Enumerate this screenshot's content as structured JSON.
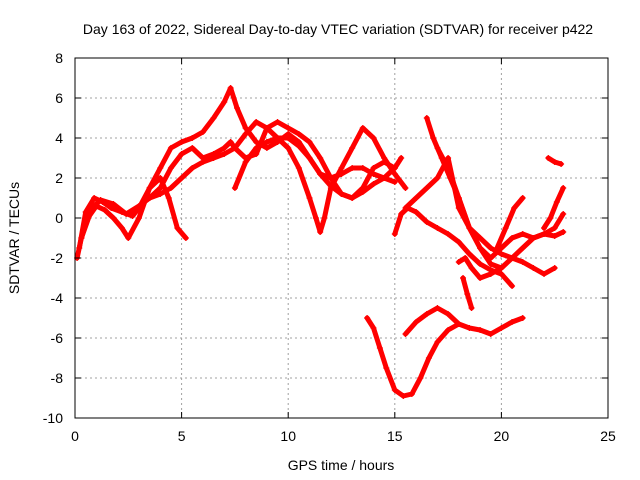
{
  "chart_data": {
    "type": "scatter",
    "title": "Day 163 of 2022, Sidereal Day-to-day VTEC variation (SDTVAR) for receiver p422",
    "xlabel": "GPS time / hours",
    "ylabel": "SDTVAR / TECUs",
    "xlim": [
      0,
      25
    ],
    "ylim": [
      -10,
      8
    ],
    "xticks": [
      0,
      5,
      10,
      15,
      20,
      25
    ],
    "yticks": [
      -10,
      -8,
      -6,
      -4,
      -2,
      0,
      2,
      4,
      6,
      8
    ],
    "grid": true,
    "marker": "+",
    "color": "#ff0000",
    "series": [
      {
        "x": [
          0.1,
          0.3,
          0.6,
          1.0,
          1.4,
          1.8,
          2.2,
          2.5,
          3.0,
          3.5,
          4.0,
          4.5,
          5.0,
          5.5,
          6.0,
          6.5,
          7.0,
          7.3,
          7.6,
          8.0,
          8.5,
          9.0,
          9.5,
          10.0,
          10.5,
          11.0,
          11.5,
          12.0,
          12.5,
          13.0,
          13.5,
          14.0,
          14.5,
          15.0
        ],
        "y": [
          -2.0,
          -1.0,
          0.0,
          0.6,
          0.4,
          0.0,
          -0.5,
          -1.0,
          0.0,
          1.5,
          2.5,
          3.5,
          3.8,
          4.0,
          4.3,
          5.0,
          5.8,
          6.5,
          5.5,
          4.5,
          3.8,
          3.5,
          3.8,
          4.2,
          3.8,
          3.0,
          2.2,
          2.0,
          2.2,
          2.5,
          2.5,
          2.2,
          2.0,
          1.8
        ]
      },
      {
        "x": [
          0.2,
          0.5,
          0.9,
          1.3,
          1.7,
          2.2,
          2.7,
          3.0,
          3.5,
          4.0,
          4.4,
          4.8,
          5.2
        ],
        "y": [
          -1.5,
          0.3,
          1.0,
          0.8,
          0.5,
          0.3,
          0.1,
          0.5,
          1.5,
          2.0,
          1.0,
          -0.5,
          -1.0
        ]
      },
      {
        "x": [
          0.3,
          0.8,
          1.2,
          1.8,
          2.4,
          3.0,
          3.5,
          4.0,
          4.5,
          5.0,
          5.5,
          6.0,
          6.5,
          7.0,
          7.5,
          8.0,
          8.5,
          9.0,
          9.5,
          10.0,
          10.5,
          11.0,
          11.3,
          11.5,
          11.7,
          12.0,
          12.5,
          13.0,
          13.5,
          14.0,
          14.5,
          15.0,
          15.5
        ],
        "y": [
          -1.0,
          0.5,
          0.9,
          0.7,
          0.2,
          0.6,
          1.0,
          1.2,
          1.5,
          2.0,
          2.5,
          2.8,
          3.0,
          3.2,
          3.5,
          4.2,
          4.8,
          4.5,
          4.0,
          3.5,
          2.5,
          1.0,
          0.0,
          -0.7,
          0.0,
          1.5,
          2.5,
          3.5,
          4.5,
          4.0,
          3.0,
          2.2,
          1.5
        ]
      },
      {
        "x": [
          3.5,
          4.0,
          4.5,
          5.0,
          5.5,
          6.0,
          6.5,
          7.0,
          7.3,
          7.5,
          8.0,
          8.5,
          9.0,
          9.5,
          10.0,
          10.5,
          11.0,
          11.5,
          12.0,
          12.5,
          13.0,
          13.5,
          14.0,
          14.5,
          15.0,
          15.3
        ],
        "y": [
          1.0,
          1.5,
          2.5,
          3.2,
          3.5,
          3.0,
          3.2,
          3.5,
          3.8,
          3.5,
          3.0,
          3.2,
          4.5,
          4.8,
          4.5,
          4.2,
          3.8,
          3.0,
          2.0,
          1.2,
          1.0,
          1.3,
          1.7,
          2.0,
          2.5,
          3.0
        ]
      },
      {
        "x": [
          7.5,
          8.0,
          8.5,
          9.0,
          9.5,
          10.0,
          10.5,
          11.0,
          11.5,
          12.0,
          12.5,
          13.0,
          13.5,
          14.0,
          14.5,
          15.0
        ],
        "y": [
          1.5,
          2.8,
          3.5,
          3.8,
          4.0,
          4.0,
          3.6,
          3.0,
          2.2,
          1.6,
          1.2,
          1.0,
          1.5,
          2.5,
          2.8,
          2.5
        ]
      },
      {
        "x": [
          15.0,
          15.3,
          15.6,
          16.0,
          16.5,
          17.0,
          17.5,
          18.0,
          18.5,
          19.0,
          19.5,
          20.0,
          20.5
        ],
        "y": [
          -0.8,
          0.2,
          0.5,
          0.3,
          -0.2,
          -0.5,
          -0.8,
          -1.2,
          -1.8,
          -2.3,
          -2.6,
          -2.8,
          -3.4
        ]
      },
      {
        "x": [
          15.5,
          16.0,
          16.5,
          17.0,
          17.5,
          18.0,
          18.5,
          19.0,
          19.5,
          20.0,
          20.5,
          21.0,
          21.5,
          22.0,
          22.5
        ],
        "y": [
          0.5,
          1.0,
          1.5,
          2.0,
          3.0,
          0.5,
          -0.5,
          -1.0,
          -1.5,
          -1.8,
          -2.0,
          -2.2,
          -2.5,
          -2.8,
          -2.5
        ]
      },
      {
        "x": [
          16.5,
          16.8,
          17.2,
          17.6,
          18.0,
          18.5,
          19.0,
          19.5,
          20.0,
          20.5,
          21.0,
          21.5,
          22.0,
          22.5,
          22.9
        ],
        "y": [
          5.0,
          4.0,
          3.0,
          2.0,
          1.0,
          -0.5,
          -1.5,
          -2.3,
          -2.5,
          -2.0,
          -1.5,
          -1.0,
          -0.8,
          -0.9,
          -0.7
        ]
      },
      {
        "x": [
          17.0,
          17.5,
          18.0,
          18.5,
          19.0,
          19.5,
          20.0,
          20.5,
          21.0,
          21.5,
          22.0,
          22.5,
          22.9
        ],
        "y": [
          3.5,
          2.5,
          1.0,
          -0.5,
          -1.5,
          -2.0,
          -1.5,
          -1.0,
          -0.8,
          -1.0,
          -0.8,
          -0.5,
          0.2
        ]
      },
      {
        "x": [
          19.8,
          20.2,
          20.6,
          21.0
        ],
        "y": [
          -1.5,
          -0.5,
          0.5,
          1.0
        ]
      },
      {
        "x": [
          22.0,
          22.3,
          22.6,
          22.9
        ],
        "y": [
          -0.5,
          0.0,
          0.8,
          1.5
        ]
      },
      {
        "x": [
          22.2,
          22.5,
          22.8
        ],
        "y": [
          3.0,
          2.8,
          2.7
        ]
      },
      {
        "x": [
          18.0,
          18.3,
          18.6,
          19.0,
          19.5,
          20.0
        ],
        "y": [
          -2.2,
          -2.0,
          -2.5,
          -3.0,
          -2.8,
          -2.5
        ]
      },
      {
        "x": [
          13.7,
          14.0,
          14.3,
          14.6,
          15.0,
          15.4,
          15.8,
          16.2,
          16.6,
          17.0,
          17.5,
          18.0
        ],
        "y": [
          -5.0,
          -5.5,
          -6.5,
          -7.5,
          -8.6,
          -8.9,
          -8.8,
          -8.0,
          -7.0,
          -6.2,
          -5.6,
          -5.3
        ]
      },
      {
        "x": [
          15.5,
          16.0,
          16.5,
          17.0,
          17.5,
          18.0,
          18.5,
          19.0,
          19.5,
          20.0,
          20.5,
          21.0
        ],
        "y": [
          -5.8,
          -5.2,
          -4.8,
          -4.5,
          -4.8,
          -5.3,
          -5.5,
          -5.6,
          -5.8,
          -5.5,
          -5.2,
          -5.0
        ]
      },
      {
        "x": [
          18.2,
          18.4,
          18.6
        ],
        "y": [
          -3.0,
          -3.8,
          -4.5
        ]
      }
    ]
  }
}
